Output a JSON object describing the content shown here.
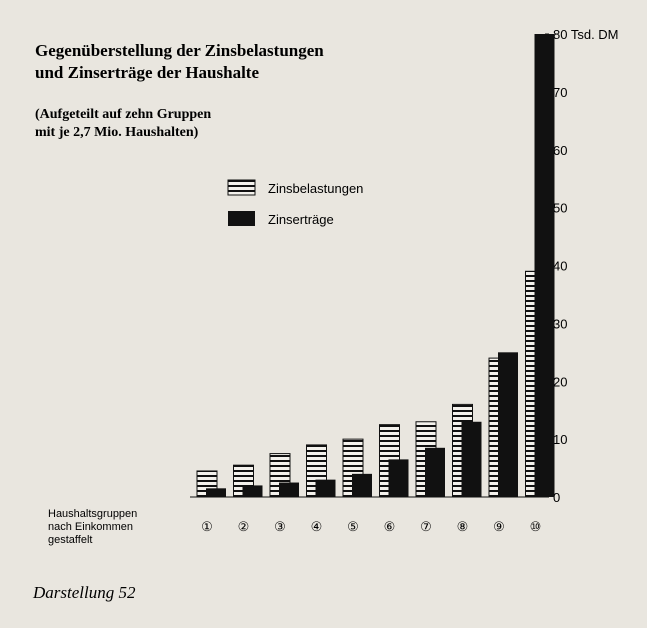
{
  "caption": "Darstellung 52",
  "chart_data": {
    "type": "bar",
    "title_lines": [
      "Gegenüberstellung der Zinsbelastungen",
      "und Zinserträge der Haushalte"
    ],
    "subtitle_lines": [
      "(Aufgeteilt auf zehn Gruppen",
      "mit je 2,7 Mio. Haushalten)"
    ],
    "xlabel_lines": [
      "Haushaltsgruppen",
      "nach Einkommen",
      "gestaffelt"
    ],
    "ylabel": "",
    "y_unit_label": "Tsd. DM",
    "ylim": [
      0,
      80
    ],
    "yticks": [
      0,
      10,
      20,
      30,
      40,
      50,
      60,
      70,
      80
    ],
    "categories": [
      "①",
      "②",
      "③",
      "④",
      "⑤",
      "⑥",
      "⑦",
      "⑧",
      "⑨",
      "⑩"
    ],
    "series": [
      {
        "name": "Zinsbelastungen",
        "style": "hatched",
        "values": [
          4.5,
          5.5,
          7.5,
          9,
          10,
          12.5,
          13,
          16,
          24,
          39
        ]
      },
      {
        "name": "Zinserträge",
        "style": "solid",
        "values": [
          1.5,
          2,
          2.5,
          3,
          4,
          6.5,
          8.5,
          13,
          25,
          80
        ]
      }
    ],
    "legend_position": "center"
  },
  "colors": {
    "background": "#e9e6df",
    "ink": "#111111"
  }
}
